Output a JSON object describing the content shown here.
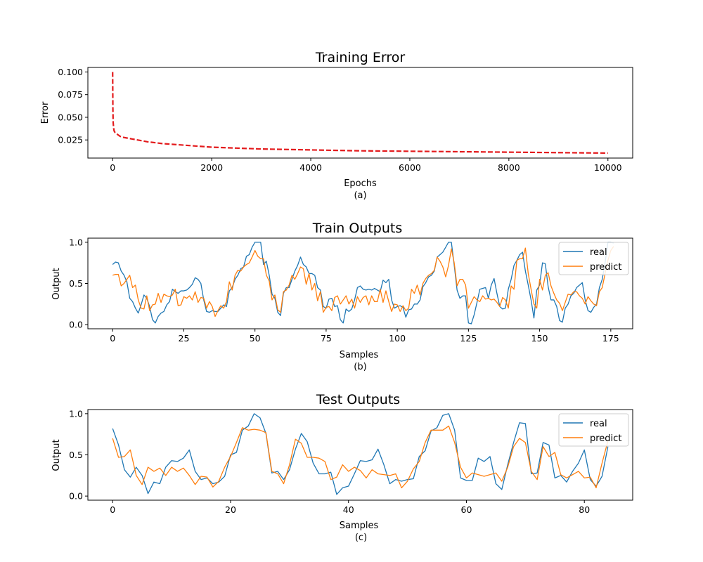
{
  "chart_data": [
    {
      "type": "line",
      "title": "Training Error",
      "xlabel": "Epochs",
      "ylabel": "Error",
      "caption": "(a)",
      "xlim": [
        -500,
        10500
      ],
      "ylim": [
        0.005,
        0.105
      ],
      "xticks": [
        0,
        2000,
        4000,
        6000,
        8000,
        10000
      ],
      "yticks": [
        0.025,
        0.05,
        0.075,
        0.1
      ],
      "ytick_labels": [
        "0.025",
        "0.050",
        "0.075",
        "0.100"
      ],
      "legend": false,
      "series": [
        {
          "color": "#e31a1c",
          "style": "dashed",
          "x": [
            0,
            5,
            10,
            20,
            30,
            50,
            80,
            100,
            150,
            200,
            300,
            400,
            500,
            700,
            1000,
            1500,
            2000,
            2500,
            3000,
            3500,
            4000,
            5000,
            6000,
            7000,
            8000,
            9000,
            10000
          ],
          "y": [
            0.1,
            0.06,
            0.045,
            0.038,
            0.035,
            0.033,
            0.032,
            0.031,
            0.029,
            0.028,
            0.027,
            0.026,
            0.025,
            0.023,
            0.021,
            0.019,
            0.017,
            0.016,
            0.015,
            0.0145,
            0.014,
            0.013,
            0.0125,
            0.012,
            0.0115,
            0.011,
            0.0105
          ]
        }
      ]
    },
    {
      "type": "line",
      "title": "Train Outputs",
      "xlabel": "Samples",
      "ylabel": "Output",
      "caption": "(b)",
      "xlim": [
        -8.7,
        182.7
      ],
      "ylim": [
        -0.05,
        1.05
      ],
      "xticks": [
        0,
        25,
        50,
        75,
        100,
        125,
        150,
        175
      ],
      "yticks": [
        0,
        0.5,
        1
      ],
      "ytick_labels": [
        "0.0",
        "0.5",
        "1.0"
      ],
      "legend": "top-right",
      "series": [
        {
          "name": "real",
          "color": "#1f77b4",
          "y": [
            0.73,
            0.76,
            0.75,
            0.65,
            0.6,
            0.52,
            0.32,
            0.28,
            0.2,
            0.14,
            0.24,
            0.36,
            0.32,
            0.22,
            0.06,
            0.02,
            0.1,
            0.14,
            0.16,
            0.24,
            0.28,
            0.43,
            0.4,
            0.38,
            0.41,
            0.41,
            0.42,
            0.45,
            0.49,
            0.57,
            0.55,
            0.5,
            0.3,
            0.16,
            0.15,
            0.17,
            0.16,
            0.16,
            0.2,
            0.24,
            0.22,
            0.41,
            0.45,
            0.55,
            0.6,
            0.68,
            0.7,
            0.83,
            0.85,
            0.94,
            1.0,
            1.0,
            1.0,
            0.73,
            0.77,
            0.6,
            0.37,
            0.32,
            0.15,
            0.11,
            0.38,
            0.45,
            0.45,
            0.55,
            0.65,
            0.72,
            0.82,
            0.73,
            0.7,
            0.62,
            0.62,
            0.6,
            0.45,
            0.42,
            0.22,
            0.2,
            0.31,
            0.32,
            0.22,
            0.23,
            0.06,
            0.02,
            0.19,
            0.16,
            0.19,
            0.3,
            0.45,
            0.47,
            0.43,
            0.42,
            0.43,
            0.42,
            0.44,
            0.42,
            0.4,
            0.54,
            0.51,
            0.55,
            0.3,
            0.2,
            0.22,
            0.23,
            0.21,
            0.09,
            0.18,
            0.19,
            0.25,
            0.25,
            0.3,
            0.46,
            0.51,
            0.58,
            0.6,
            0.65,
            0.82,
            0.85,
            0.88,
            0.94,
            1.0,
            1.0,
            0.72,
            0.42,
            0.32,
            0.35,
            0.35,
            0.02,
            0.01,
            0.12,
            0.27,
            0.43,
            0.44,
            0.45,
            0.32,
            0.48,
            0.56,
            0.38,
            0.22,
            0.19,
            0.2,
            0.43,
            0.55,
            0.72,
            0.78,
            0.85,
            0.88,
            0.65,
            0.48,
            0.3,
            0.08,
            0.42,
            0.48,
            0.75,
            0.74,
            0.46,
            0.3,
            0.3,
            0.22,
            0.05,
            0.03,
            0.2,
            0.25,
            0.35,
            0.38,
            0.45,
            0.48,
            0.51,
            0.3,
            0.17,
            0.15,
            0.21,
            0.25,
            0.45,
            0.55,
            0.75,
            1.0,
            1.0,
            0.99
          ]
        },
        {
          "name": "predict",
          "color": "#ff7f0e",
          "y": [
            0.6,
            0.61,
            0.61,
            0.47,
            0.5,
            0.55,
            0.6,
            0.45,
            0.48,
            0.3,
            0.2,
            0.19,
            0.35,
            0.17,
            0.24,
            0.25,
            0.38,
            0.27,
            0.37,
            0.35,
            0.34,
            0.36,
            0.43,
            0.23,
            0.24,
            0.34,
            0.32,
            0.35,
            0.3,
            0.4,
            0.27,
            0.33,
            0.32,
            0.2,
            0.28,
            0.22,
            0.1,
            0.17,
            0.23,
            0.2,
            0.28,
            0.52,
            0.42,
            0.6,
            0.66,
            0.65,
            0.7,
            0.73,
            0.75,
            0.82,
            0.9,
            0.83,
            0.8,
            0.8,
            0.6,
            0.53,
            0.3,
            0.36,
            0.18,
            0.15,
            0.4,
            0.42,
            0.48,
            0.6,
            0.55,
            0.62,
            0.7,
            0.68,
            0.49,
            0.62,
            0.42,
            0.5,
            0.29,
            0.4,
            0.15,
            0.21,
            0.22,
            0.17,
            0.33,
            0.35,
            0.25,
            0.3,
            0.35,
            0.25,
            0.31,
            0.2,
            0.34,
            0.27,
            0.33,
            0.35,
            0.24,
            0.35,
            0.28,
            0.28,
            0.43,
            0.27,
            0.41,
            0.28,
            0.16,
            0.25,
            0.24,
            0.16,
            0.23,
            0.17,
            0.2,
            0.43,
            0.38,
            0.48,
            0.36,
            0.5,
            0.56,
            0.6,
            0.62,
            0.66,
            0.82,
            0.77,
            0.7,
            0.58,
            0.72,
            0.92,
            0.75,
            0.47,
            0.55,
            0.55,
            0.48,
            0.2,
            0.27,
            0.34,
            0.3,
            0.28,
            0.35,
            0.31,
            0.32,
            0.3,
            0.31,
            0.27,
            0.22,
            0.33,
            0.3,
            0.2,
            0.47,
            0.43,
            0.78,
            0.8,
            0.8,
            0.93,
            0.62,
            0.43,
            0.25,
            0.2,
            0.55,
            0.42,
            0.6,
            0.63,
            0.47,
            0.38,
            0.3,
            0.26,
            0.17,
            0.27,
            0.37,
            0.36,
            0.4,
            0.4,
            0.35,
            0.32,
            0.25,
            0.34,
            0.29,
            0.25,
            0.23,
            0.4,
            0.45,
            0.62,
            0.78,
            0.9,
            0.95
          ]
        }
      ]
    },
    {
      "type": "line",
      "title": "Test Outputs",
      "xlabel": "Samples",
      "ylabel": "Output",
      "caption": "(c)",
      "xlim": [
        -4.2,
        88.2
      ],
      "ylim": [
        -0.05,
        1.05
      ],
      "xticks": [
        0,
        20,
        40,
        60,
        80
      ],
      "yticks": [
        0,
        0.5,
        1
      ],
      "ytick_labels": [
        "0.0",
        "0.5",
        "1.0"
      ],
      "legend": "top-right",
      "series": [
        {
          "name": "real",
          "color": "#1f77b4",
          "y": [
            0.82,
            0.62,
            0.32,
            0.23,
            0.35,
            0.25,
            0.03,
            0.17,
            0.15,
            0.35,
            0.43,
            0.42,
            0.46,
            0.56,
            0.3,
            0.2,
            0.22,
            0.15,
            0.17,
            0.24,
            0.5,
            0.53,
            0.8,
            0.85,
            1.0,
            0.95,
            0.76,
            0.28,
            0.3,
            0.2,
            0.32,
            0.57,
            0.76,
            0.66,
            0.4,
            0.27,
            0.27,
            0.29,
            0.02,
            0.1,
            0.12,
            0.27,
            0.43,
            0.42,
            0.44,
            0.57,
            0.38,
            0.15,
            0.2,
            0.18,
            0.2,
            0.21,
            0.48,
            0.55,
            0.79,
            0.83,
            0.98,
            1.0,
            0.8,
            0.22,
            0.19,
            0.19,
            0.46,
            0.42,
            0.48,
            0.15,
            0.08,
            0.38,
            0.65,
            0.89,
            0.88,
            0.27,
            0.28,
            0.65,
            0.62,
            0.22,
            0.25,
            0.17,
            0.3,
            0.4,
            0.56,
            0.2,
            0.12,
            0.24,
            0.6
          ]
        },
        {
          "name": "predict",
          "color": "#ff7f0e",
          "y": [
            0.7,
            0.47,
            0.48,
            0.56,
            0.25,
            0.14,
            0.35,
            0.3,
            0.34,
            0.25,
            0.35,
            0.3,
            0.34,
            0.25,
            0.14,
            0.24,
            0.23,
            0.11,
            0.18,
            0.35,
            0.48,
            0.65,
            0.83,
            0.8,
            0.81,
            0.8,
            0.77,
            0.3,
            0.27,
            0.15,
            0.38,
            0.69,
            0.64,
            0.47,
            0.47,
            0.46,
            0.42,
            0.2,
            0.23,
            0.38,
            0.3,
            0.35,
            0.31,
            0.22,
            0.32,
            0.27,
            0.26,
            0.25,
            0.27,
            0.1,
            0.18,
            0.33,
            0.42,
            0.65,
            0.8,
            0.8,
            0.8,
            0.85,
            0.65,
            0.35,
            0.22,
            0.28,
            0.26,
            0.24,
            0.26,
            0.28,
            0.18,
            0.35,
            0.6,
            0.7,
            0.65,
            0.3,
            0.2,
            0.6,
            0.48,
            0.53,
            0.26,
            0.22,
            0.26,
            0.3,
            0.22,
            0.23,
            0.1,
            0.4,
            0.67
          ]
        }
      ]
    }
  ]
}
